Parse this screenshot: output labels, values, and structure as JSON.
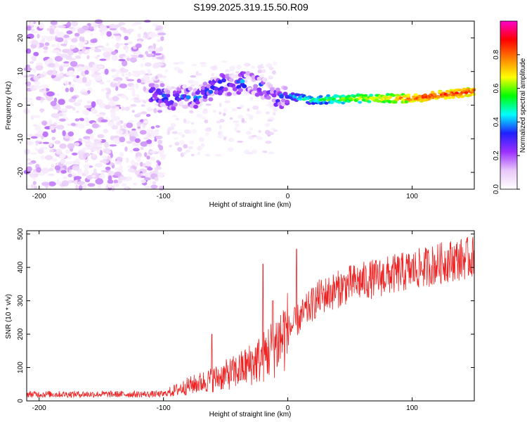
{
  "title": "S199.2025.319.15.50.R09",
  "chart_data": [
    {
      "type": "heatmap",
      "name": "spectrogram",
      "xlabel": "Height of straight line (km)",
      "ylabel": "Frequency (Hz)",
      "xlim": [
        -210,
        150
      ],
      "ylim": [
        -25,
        25
      ],
      "xticks": [
        "-200",
        "-100",
        "0",
        "100"
      ],
      "xtick_values": [
        -200,
        -100,
        0,
        100
      ],
      "yticks": [
        "20",
        "10",
        "0",
        "-10",
        "-20"
      ],
      "ytick_values": [
        20,
        10,
        0,
        -10,
        -20
      ],
      "description_of_ridge": [
        {
          "x": -110,
          "y": 3
        },
        {
          "x": -100,
          "y": 3
        },
        {
          "x": -95,
          "y": 1
        },
        {
          "x": -85,
          "y": 3
        },
        {
          "x": -75,
          "y": 2
        },
        {
          "x": -65,
          "y": 4
        },
        {
          "x": -55,
          "y": 6
        },
        {
          "x": -45,
          "y": 6
        },
        {
          "x": -35,
          "y": 7
        },
        {
          "x": -25,
          "y": 6
        },
        {
          "x": -15,
          "y": 4
        },
        {
          "x": -8,
          "y": 2
        },
        {
          "x": 0,
          "y": 3
        },
        {
          "x": 10,
          "y": 2
        },
        {
          "x": 20,
          "y": 1.5
        },
        {
          "x": 60,
          "y": 2
        },
        {
          "x": 100,
          "y": 2
        },
        {
          "x": 120,
          "y": 3
        },
        {
          "x": 150,
          "y": 4
        }
      ],
      "colorbar": {
        "label": "Normalized spectral amplitude",
        "range": [
          0,
          1
        ],
        "ticks": [
          "0.0",
          "0.2",
          "0.4",
          "0.6",
          "0.8"
        ],
        "tick_values": [
          0,
          0.2,
          0.4,
          0.6,
          0.8
        ],
        "colors": [
          "#ffffff",
          "#e8c8f8",
          "#9b30ff",
          "#2020ff",
          "#00ffff",
          "#00ff00",
          "#ffff00",
          "#ff8000",
          "#ff0000",
          "#ff00cc"
        ]
      }
    },
    {
      "type": "line",
      "name": "snr",
      "xlabel": "Height of straight line (km)",
      "ylabel": "SNR (10 * v/v)",
      "xlim": [
        -210,
        150
      ],
      "ylim": [
        0,
        510
      ],
      "xticks": [
        "-200",
        "-100",
        "0",
        "100"
      ],
      "xtick_values": [
        -200,
        -100,
        0,
        100
      ],
      "yticks": [
        "500",
        "400",
        "300",
        "200",
        "100",
        "0"
      ],
      "ytick_values": [
        500,
        400,
        300,
        200,
        100,
        0
      ],
      "color": "#ee2222",
      "trend": [
        {
          "x": -210,
          "y": 20
        },
        {
          "x": -100,
          "y": 20
        },
        {
          "x": -92,
          "y": 30
        },
        {
          "x": -80,
          "y": 45
        },
        {
          "x": -60,
          "y": 65
        },
        {
          "x": -40,
          "y": 90
        },
        {
          "x": -20,
          "y": 130
        },
        {
          "x": -5,
          "y": 190
        },
        {
          "x": 10,
          "y": 250
        },
        {
          "x": 25,
          "y": 310
        },
        {
          "x": 50,
          "y": 350
        },
        {
          "x": 80,
          "y": 375
        },
        {
          "x": 110,
          "y": 400
        },
        {
          "x": 130,
          "y": 420
        },
        {
          "x": 150,
          "y": 430
        }
      ],
      "spikes": [
        {
          "x": -61,
          "y": 200
        },
        {
          "x": -20,
          "y": 410
        },
        {
          "x": -12,
          "y": 300
        },
        {
          "x": 7,
          "y": 455
        }
      ]
    }
  ]
}
